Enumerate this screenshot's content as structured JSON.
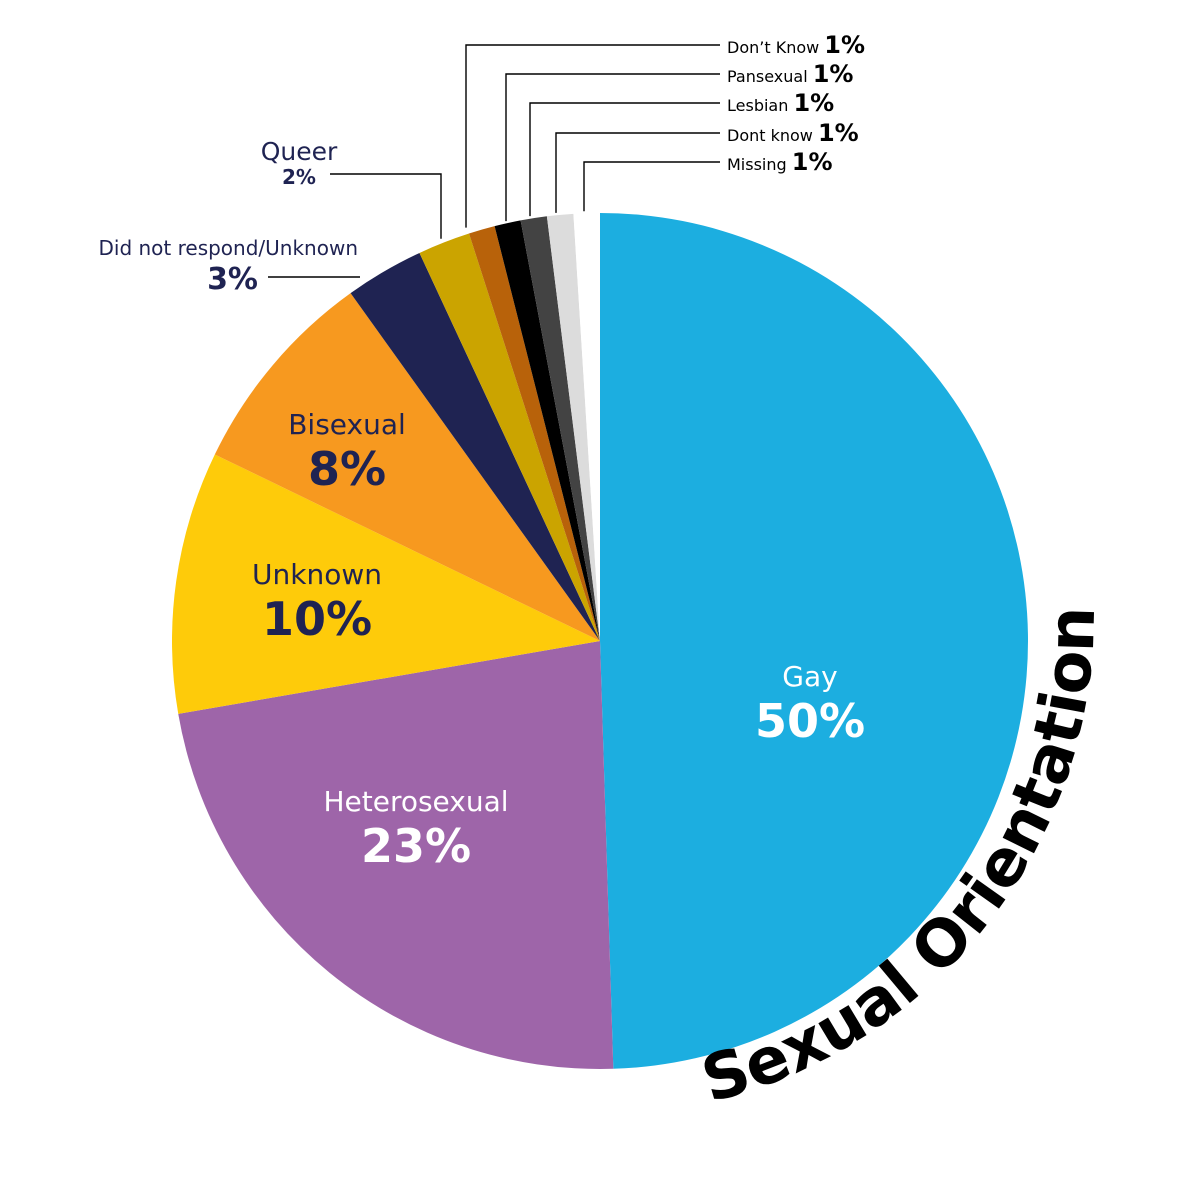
{
  "chart_data": {
    "type": "pie",
    "title": "Sexual Orientation",
    "slices": [
      {
        "label": "Gay",
        "value": 50,
        "value_label": "50%",
        "color": "#1caee0"
      },
      {
        "label": "Heterosexual",
        "value": 23,
        "value_label": "23%",
        "color": "#9e65a9"
      },
      {
        "label": "Unknown",
        "value": 10,
        "value_label": "10%",
        "color": "#fecb0a"
      },
      {
        "label": "Bisexual",
        "value": 8,
        "value_label": "8%",
        "color": "#f7991f"
      },
      {
        "label": "Did not respond/Unknown",
        "value": 3,
        "value_label": "3%",
        "color": "#1f2352"
      },
      {
        "label": "Queer",
        "value": 2,
        "value_label": "2%",
        "color": "#cba400"
      },
      {
        "label": "Don’t Know",
        "value": 1,
        "value_label": "1%",
        "color": "#b8620a"
      },
      {
        "label": "Pansexual",
        "value": 1,
        "value_label": "1%",
        "color": "#000000"
      },
      {
        "label": "Lesbian",
        "value": 1,
        "value_label": "1%",
        "color": "#434343"
      },
      {
        "label": "Dont know",
        "value": 1,
        "value_label": "1%",
        "color": "#dcdcdc"
      },
      {
        "label": "Missing",
        "value": 1,
        "value_label": "1%",
        "color": "#ffffff"
      }
    ]
  },
  "label_colors": {
    "inside_light": "#ffffff",
    "inside_dark": "#1f2352",
    "outside": "#1f2352",
    "small": "#000000",
    "leader": "#000000"
  }
}
